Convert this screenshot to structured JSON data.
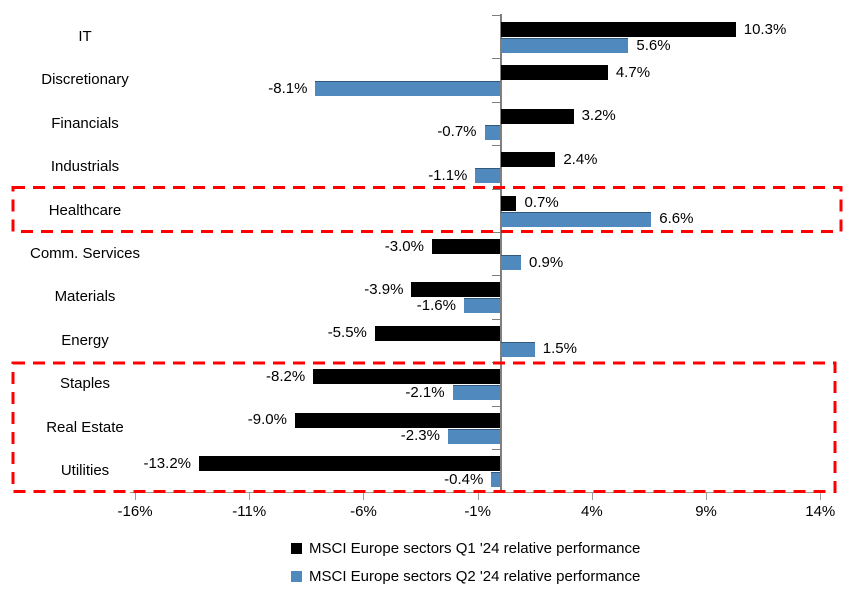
{
  "chart_data": {
    "type": "bar",
    "orientation": "horizontal",
    "categories": [
      "IT",
      "Discretionary",
      "Financials",
      "Industrials",
      "Healthcare",
      "Comm. Services",
      "Materials",
      "Energy",
      "Staples",
      "Real Estate",
      "Utilities"
    ],
    "series": [
      {
        "name": "MSCI Europe sectors Q1 '24 relative performance",
        "color": "#000000",
        "values": [
          10.3,
          4.7,
          3.2,
          2.4,
          0.7,
          -3.0,
          -3.9,
          -5.5,
          -8.2,
          -9.0,
          -13.2
        ],
        "labels": [
          "10.3%",
          "4.7%",
          "3.2%",
          "2.4%",
          "0.7%",
          "-3.0%",
          "-3.9%",
          "-5.5%",
          "-8.2%",
          "-9.0%",
          "-13.2%"
        ]
      },
      {
        "name": "MSCI Europe sectors Q2 '24 relative performance",
        "color": "#5089BE",
        "values": [
          5.6,
          -8.1,
          -0.7,
          -1.1,
          6.6,
          0.9,
          -1.6,
          1.5,
          -2.1,
          -2.3,
          -0.4
        ],
        "labels": [
          "5.6%",
          "-8.1%",
          "-0.7%",
          "-1.1%",
          "6.6%",
          "0.9%",
          "-1.6%",
          "1.5%",
          "-2.1%",
          "-2.3%",
          "-0.4%"
        ]
      }
    ],
    "x_ticks": [
      "-16%",
      "-11%",
      "-6%",
      "-1%",
      "4%",
      "9%",
      "14%"
    ],
    "x_tick_values": [
      -16,
      -11,
      -6,
      -1,
      4,
      9,
      14
    ],
    "xlim": [
      -16,
      14
    ],
    "grid": false,
    "legend_position": "bottom",
    "highlight_color": "#FE0000",
    "highlights": [
      {
        "label": "Healthcare",
        "rows": [
          4,
          4
        ]
      },
      {
        "label": "Staples / Real Estate / Utilities",
        "rows": [
          8,
          10
        ]
      }
    ]
  }
}
